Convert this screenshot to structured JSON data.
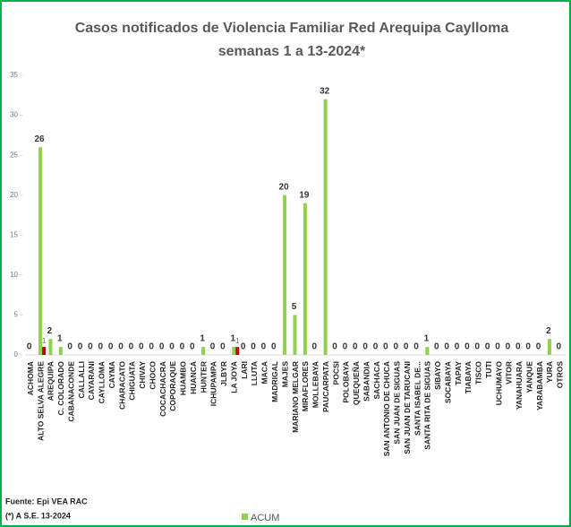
{
  "chart_data": {
    "type": "bar",
    "title": "Casos notificados  de Violencia Familiar Red Arequipa Caylloma",
    "subtitle": "semanas 1 a 13-2024*",
    "categories": [
      "ACHOMA",
      "ALTO SELVA ALEGRE",
      "AREQUIPA",
      "C. COLORADO",
      "CABANACONDE",
      "CALLALLI",
      "CAYARANI",
      "CAYLLOMA",
      "CAYMA",
      "CHARACATO",
      "CHIGUATA",
      "CHIVAY",
      "CHOCO",
      "COCACHACRA",
      "COPORAQUE",
      "HUAMBO",
      "HUANCA",
      "HUNTER",
      "ICHUPAMPA",
      "JLBYR",
      "LA JOYA",
      "LARI",
      "LLUTA",
      "MACA",
      "MADRIGAL",
      "MAJES",
      "MARIANO MELGAR",
      "MIRAFLORES",
      "MOLLEBAYA",
      "PAUCARPATA",
      "POCSI",
      "POLOBAYA",
      "QUEQUEÑA",
      "SABANDIA",
      "SACHACA",
      "SAN ANTONIO DE CHUCA",
      "SAN JUAN DE SIGUAS",
      "SAN JUAN DE TARUCANI",
      "SANTA ISABEL DE...",
      "SANTA RITA DE SIGUAS",
      "SIBAYO",
      "SOCABAYA",
      "TAPAY",
      "TIABAYA",
      "TISCO",
      "TUTI",
      "UCHUMAYO",
      "VITOR",
      "YANAHUARA",
      "YANQUE",
      "YARABAMBA",
      "YURA",
      "OTROS"
    ],
    "series": [
      {
        "name": "ACUM",
        "color": "#92d050",
        "values": [
          0,
          26,
          2,
          1,
          0,
          0,
          0,
          0,
          0,
          0,
          0,
          0,
          0,
          0,
          0,
          0,
          0,
          1,
          0,
          0,
          1,
          0,
          0,
          0,
          0,
          20,
          5,
          19,
          0,
          32,
          0,
          0,
          0,
          0,
          0,
          0,
          0,
          0,
          0,
          1,
          0,
          0,
          0,
          0,
          0,
          0,
          0,
          0,
          0,
          0,
          0,
          2,
          0
        ]
      },
      {
        "color": "#c00000",
        "values": [
          null,
          1,
          null,
          null,
          null,
          null,
          null,
          null,
          null,
          null,
          null,
          null,
          null,
          null,
          null,
          null,
          null,
          null,
          null,
          null,
          1,
          null,
          null,
          null,
          null,
          null,
          null,
          null,
          null,
          null,
          null,
          null,
          null,
          null,
          null,
          null,
          null,
          null,
          null,
          null,
          null,
          null,
          null,
          null,
          null,
          null,
          null,
          null,
          null,
          null,
          null,
          null,
          null
        ]
      }
    ],
    "ylim": [
      0,
      35
    ],
    "yticks": [
      0,
      5,
      10,
      15,
      20,
      25,
      30,
      35
    ],
    "legend": "bottom",
    "notes": [
      "Fuente: Epi VEA RAC",
      "(*) A S.E. 13-2024"
    ]
  }
}
